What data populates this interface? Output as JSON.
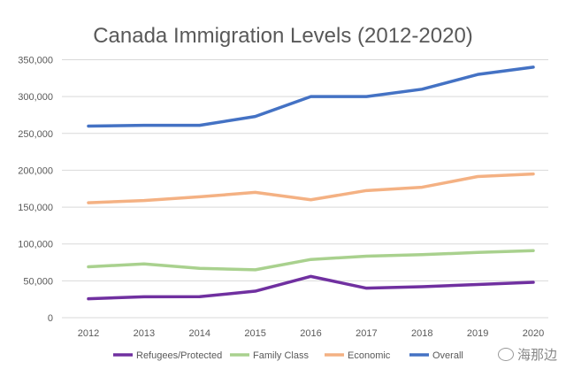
{
  "chart_data": {
    "type": "line",
    "title": "Canada Immigration Levels (2012-2020)",
    "xlabel": "",
    "ylabel": "",
    "x": [
      "2012",
      "2013",
      "2014",
      "2015",
      "2016",
      "2017",
      "2018",
      "2019",
      "2020"
    ],
    "ylim": [
      0,
      350000
    ],
    "yticks": [
      0,
      50000,
      100000,
      150000,
      200000,
      250000,
      300000,
      350000
    ],
    "ytick_labels": [
      "0",
      "50,000",
      "100,000",
      "150,000",
      "200,000",
      "250,000",
      "300,000",
      "350,000"
    ],
    "grid": true,
    "legend_position": "bottom",
    "series": [
      {
        "name": "Refugees/Protected",
        "color": "#7030a0",
        "values": [
          25600,
          28400,
          28500,
          36000,
          56000,
          40000,
          42000,
          45000,
          48000
        ]
      },
      {
        "name": "Family Class",
        "color": "#a9d18e",
        "values": [
          69000,
          73000,
          67000,
          65000,
          79000,
          83500,
          85500,
          88500,
          91000
        ]
      },
      {
        "name": "Economic",
        "color": "#f4b183",
        "values": [
          156000,
          159000,
          164000,
          170000,
          160000,
          172500,
          177000,
          191500,
          195000
        ]
      },
      {
        "name": "Overall",
        "color": "#4472c4",
        "values": [
          260000,
          261000,
          261000,
          273000,
          300000,
          300000,
          310000,
          330000,
          340000
        ]
      }
    ]
  },
  "watermark": {
    "text": "海那边",
    "icon": "wechat-icon"
  }
}
